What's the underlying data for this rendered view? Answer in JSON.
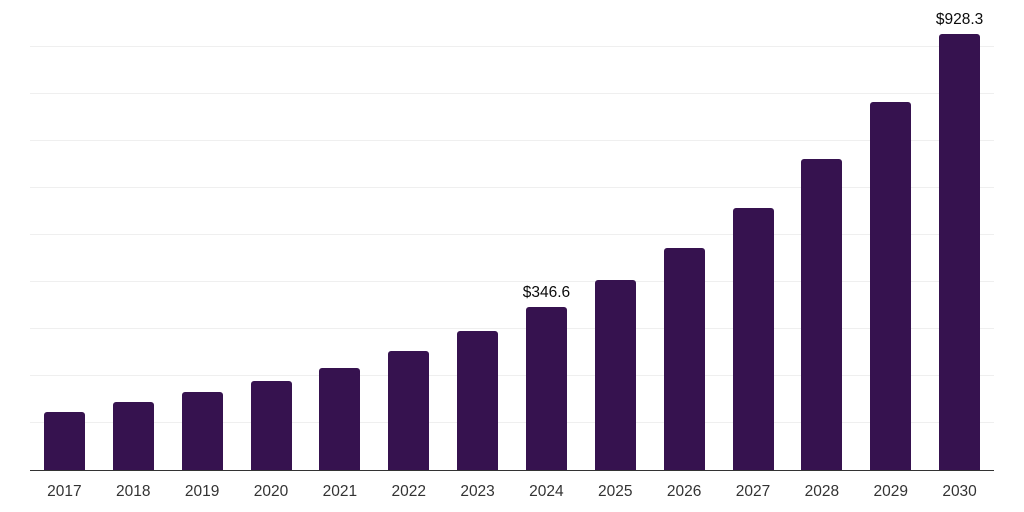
{
  "chart_data": {
    "type": "bar",
    "title": "",
    "xlabel": "",
    "ylabel": "",
    "categories": [
      "2017",
      "2018",
      "2019",
      "2020",
      "2021",
      "2022",
      "2023",
      "2024",
      "2025",
      "2026",
      "2027",
      "2028",
      "2029",
      "2030"
    ],
    "values": [
      123.4,
      143.9,
      165.2,
      189.2,
      217.5,
      253.0,
      294.8,
      346.6,
      403.9,
      473.4,
      558.4,
      661.1,
      782.9,
      928.3
    ],
    "labeled_indices": [
      7,
      13
    ],
    "data_labels": [
      "$346.6",
      "$928.3"
    ],
    "value_prefix": "$",
    "ylim": [
      0,
      1000
    ],
    "gridline_step": 100,
    "grid": true,
    "y_tick_labels_visible": false,
    "legend": false,
    "colors": {
      "bar": "#36124F",
      "grid": "#efefef",
      "axis_line": "#333333",
      "tick_label": "#333333",
      "data_label": "#0b0b0b",
      "background": "#ffffff"
    }
  }
}
